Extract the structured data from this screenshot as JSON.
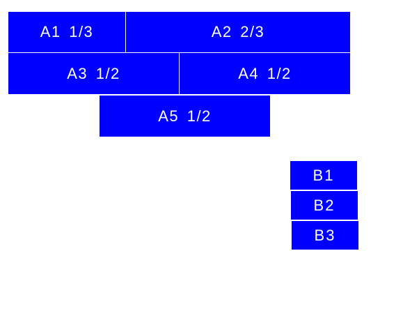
{
  "color": "#0000ff",
  "group_a": [
    {
      "label": "A1 1/3"
    },
    {
      "label": "A2 2/3"
    },
    {
      "label": "A3 1/2"
    },
    {
      "label": "A4 1/2"
    },
    {
      "label": "A5 1/2"
    }
  ],
  "group_b": [
    {
      "label": "B1"
    },
    {
      "label": "B2"
    },
    {
      "label": "B3"
    }
  ]
}
